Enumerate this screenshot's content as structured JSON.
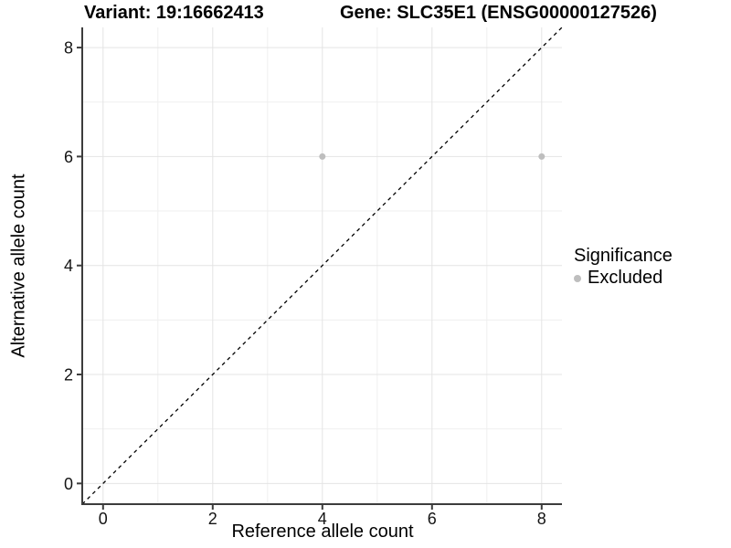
{
  "chart_data": {
    "type": "scatter",
    "title_left": "Variant: 19:16662413",
    "title_right": "Gene: SLC35E1 (ENSG00000127526)",
    "xlabel": "Reference allele count",
    "ylabel": "Alternative allele count",
    "xlim": [
      -0.38,
      8.37
    ],
    "ylim": [
      -0.38,
      8.37
    ],
    "x_ticks": [
      0,
      2,
      4,
      6,
      8
    ],
    "y_ticks": [
      0,
      2,
      4,
      6,
      8
    ],
    "x_minor_ticks": [
      1,
      3,
      5,
      7
    ],
    "y_minor_ticks": [
      1,
      3,
      5,
      7
    ],
    "grid": "on",
    "series": [
      {
        "name": "Excluded",
        "color": "#bebebe",
        "points": [
          [
            4,
            6
          ],
          [
            8,
            6
          ]
        ]
      }
    ],
    "reference_line": {
      "kind": "identity",
      "style": "dashed",
      "color": "#000000"
    },
    "legend": {
      "title": "Significance",
      "position": "right",
      "items": [
        {
          "label": "Excluded",
          "color": "#bebebe"
        }
      ]
    }
  },
  "colors": {
    "axis": "#3c3c3c",
    "grid_major": "#e4e4e4",
    "grid_minor": "#efefef",
    "tick_text": "#141414",
    "point": "#bebebe"
  }
}
